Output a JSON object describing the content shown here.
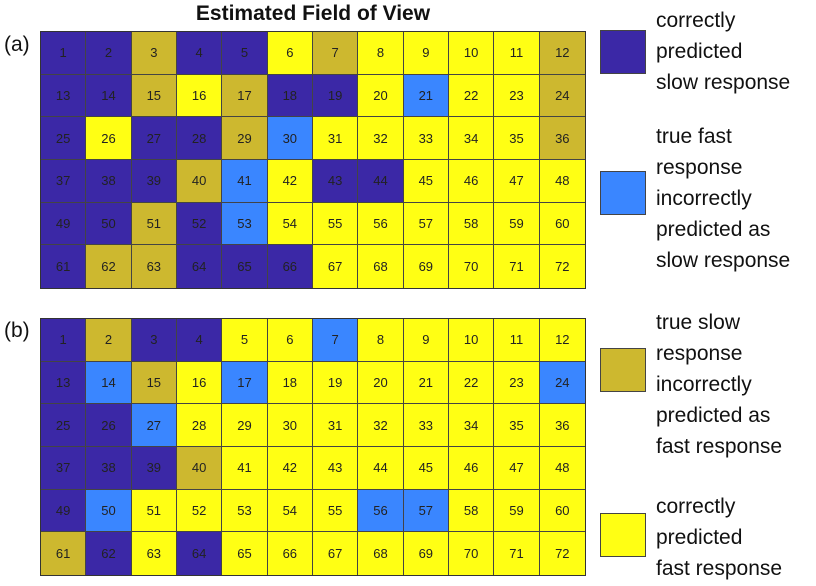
{
  "title": "Estimated Field of View",
  "colors": {
    "correct_slow": "#3b28a6",
    "fast_as_slow": "#3a86ff",
    "slow_as_fast": "#cdb82f",
    "correct_fast": "#ffff14"
  },
  "legend": [
    {
      "key": "correct_slow",
      "lines": [
        "correctly",
        "predicted",
        "slow response"
      ]
    },
    {
      "key": "fast_as_slow",
      "lines": [
        "true fast",
        "response",
        "incorrectly",
        "predicted as",
        "slow response"
      ]
    },
    {
      "key": "slow_as_fast",
      "lines": [
        "true slow",
        "response",
        "incorrectly",
        "predicted as",
        "fast response"
      ]
    },
    {
      "key": "correct_fast",
      "lines": [
        "correctly",
        "predicted",
        "fast response"
      ]
    }
  ],
  "panels": [
    {
      "label": "(a)",
      "rows": [
        [
          "correct_slow",
          "correct_slow",
          "slow_as_fast",
          "correct_slow",
          "correct_slow",
          "correct_fast",
          "slow_as_fast",
          "correct_fast",
          "correct_fast",
          "correct_fast",
          "correct_fast",
          "slow_as_fast"
        ],
        [
          "correct_slow",
          "correct_slow",
          "slow_as_fast",
          "correct_fast",
          "slow_as_fast",
          "correct_slow",
          "correct_slow",
          "correct_fast",
          "fast_as_slow",
          "correct_fast",
          "correct_fast",
          "slow_as_fast"
        ],
        [
          "correct_slow",
          "correct_fast",
          "correct_slow",
          "correct_slow",
          "slow_as_fast",
          "fast_as_slow",
          "correct_fast",
          "correct_fast",
          "correct_fast",
          "correct_fast",
          "correct_fast",
          "slow_as_fast"
        ],
        [
          "correct_slow",
          "correct_slow",
          "correct_slow",
          "slow_as_fast",
          "fast_as_slow",
          "correct_fast",
          "correct_slow",
          "correct_slow",
          "correct_fast",
          "correct_fast",
          "correct_fast",
          "correct_fast"
        ],
        [
          "correct_slow",
          "correct_slow",
          "slow_as_fast",
          "correct_slow",
          "fast_as_slow",
          "correct_fast",
          "correct_fast",
          "correct_fast",
          "correct_fast",
          "correct_fast",
          "correct_fast",
          "correct_fast"
        ],
        [
          "correct_slow",
          "slow_as_fast",
          "slow_as_fast",
          "correct_slow",
          "correct_slow",
          "correct_slow",
          "correct_fast",
          "correct_fast",
          "correct_fast",
          "correct_fast",
          "correct_fast",
          "correct_fast"
        ]
      ]
    },
    {
      "label": "(b)",
      "rows": [
        [
          "correct_slow",
          "slow_as_fast",
          "correct_slow",
          "correct_slow",
          "correct_fast",
          "correct_fast",
          "fast_as_slow",
          "correct_fast",
          "correct_fast",
          "correct_fast",
          "correct_fast",
          "correct_fast"
        ],
        [
          "correct_slow",
          "fast_as_slow",
          "slow_as_fast",
          "correct_fast",
          "fast_as_slow",
          "correct_fast",
          "correct_fast",
          "correct_fast",
          "correct_fast",
          "correct_fast",
          "correct_fast",
          "fast_as_slow"
        ],
        [
          "correct_slow",
          "correct_slow",
          "fast_as_slow",
          "correct_fast",
          "correct_fast",
          "correct_fast",
          "correct_fast",
          "correct_fast",
          "correct_fast",
          "correct_fast",
          "correct_fast",
          "correct_fast"
        ],
        [
          "correct_slow",
          "correct_slow",
          "correct_slow",
          "slow_as_fast",
          "correct_fast",
          "correct_fast",
          "correct_fast",
          "correct_fast",
          "correct_fast",
          "correct_fast",
          "correct_fast",
          "correct_fast"
        ],
        [
          "correct_slow",
          "fast_as_slow",
          "correct_fast",
          "correct_fast",
          "correct_fast",
          "correct_fast",
          "correct_fast",
          "fast_as_slow",
          "fast_as_slow",
          "correct_fast",
          "correct_fast",
          "correct_fast"
        ],
        [
          "slow_as_fast",
          "correct_slow",
          "correct_fast",
          "correct_slow",
          "correct_fast",
          "correct_fast",
          "correct_fast",
          "correct_fast",
          "correct_fast",
          "correct_fast",
          "correct_fast",
          "correct_fast"
        ]
      ]
    }
  ]
}
